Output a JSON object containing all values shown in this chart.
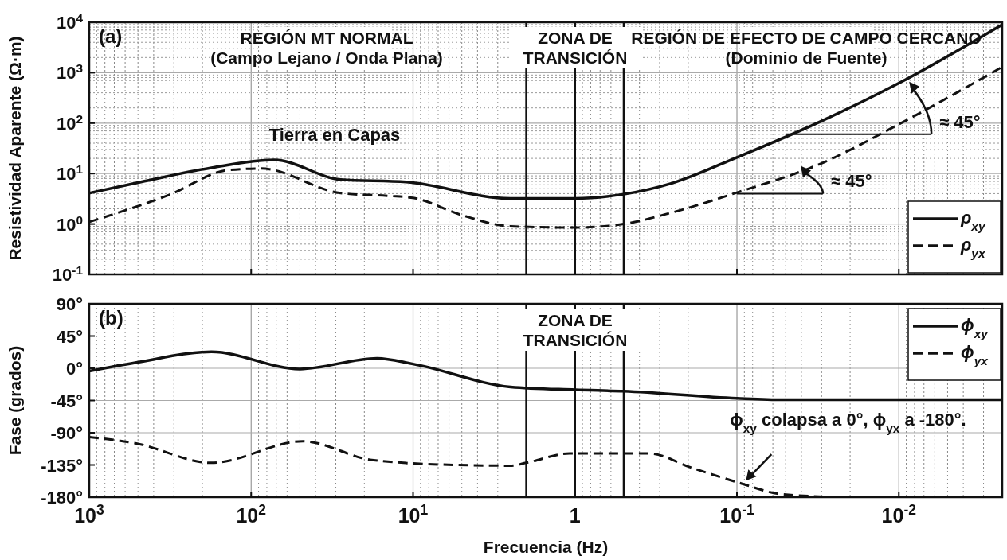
{
  "chart_data": [
    {
      "type": "line",
      "title": "(a)",
      "ylabel": "Resistividad Aparente (Ω·m)",
      "log": "xy",
      "xlim": [
        1000,
        0.0023
      ],
      "ylim": [
        0.1,
        10000
      ],
      "xticks": [
        1000,
        100,
        10,
        1,
        0.1,
        0.01
      ],
      "yticks": [
        {
          "value": 0.1,
          "label": "10$^{-1}$"
        },
        {
          "value": 1,
          "label": "10$^{0}$"
        },
        {
          "value": 10,
          "label": "10$^{1}$"
        },
        {
          "value": 100,
          "label": "10$^{2}$"
        },
        {
          "value": 1000,
          "label": "10$^{3}$"
        },
        {
          "value": 10000,
          "label": "10$^{4}$"
        }
      ],
      "tick_labels": "y",
      "grid": true,
      "legend": "bottom right",
      "series": [
        {
          "name": "ρ$_{xy}$",
          "color": "#111111",
          "line_style": "solid",
          "x": [
            1000,
            512,
            176,
            72,
            28,
            11,
            2.5,
            1,
            0.5,
            0.25,
            0.1,
            0.03,
            0.01,
            0.0023
          ],
          "values": [
            4.1,
            6.5,
            13,
            18.6,
            7.6,
            6.8,
            3.2,
            3.2,
            3.9,
            6.5,
            21,
            110,
            620,
            9000
          ]
        },
        {
          "name": "ρ$_{yx}$",
          "color": "#111111",
          "line_style": "dashed",
          "x": [
            1000,
            320,
            139,
            87,
            28,
            14,
            10,
            5,
            2.5,
            1,
            0.5,
            0.25,
            0.1,
            0.03,
            0.01,
            0.0023
          ],
          "values": [
            1.1,
            3.8,
            11.7,
            12.6,
            4.1,
            3.6,
            3.3,
            1.5,
            0.9,
            0.85,
            1,
            1.7,
            4.2,
            16,
            95,
            1300
          ]
        }
      ],
      "ref_lines": [
        {
          "axis": "x",
          "value": 2,
          "color": "#111111"
        },
        {
          "axis": "x",
          "value": 1,
          "color": "#111111"
        },
        {
          "axis": "x",
          "value": 0.5,
          "color": "#111111"
        }
      ],
      "annotations": [
        "REGIÓN MT NORMAL\n(Campo Lejano / Onda Plana)",
        "ZONA DE\nTRANSICIÓN",
        "REGIÓN DE EFECTO DE CAMPO CERCANO\n(Dominio de Fuente)",
        "Tierra en Capas",
        {
          "text": "≈ 45°",
          "x": 0.05,
          "y": 60
        },
        {
          "text": "≈ 45°",
          "x": 0.1,
          "y": 4
        }
      ]
    },
    {
      "type": "line",
      "title": "(b)",
      "xlabel": "Frecuencia (Hz)",
      "ylabel": "Fase (grados)",
      "log": "x",
      "xlim": [
        1000,
        0.0023
      ],
      "ylim": [
        -180,
        90
      ],
      "xticks": [
        {
          "value": 1000,
          "label": "10$^{3}$"
        },
        {
          "value": 100,
          "label": "10$^{2}$"
        },
        {
          "value": 10,
          "label": "10$^{1}$"
        },
        {
          "value": 1,
          "label": "1"
        },
        {
          "value": 0.1,
          "label": "10$^{-1}$"
        },
        {
          "value": 0.01,
          "label": "10$^{-2}$"
        }
      ],
      "yticks": [
        {
          "value": -180,
          "label": "-180°"
        },
        {
          "value": -135,
          "label": "-135°"
        },
        {
          "value": -90,
          "label": "-90°"
        },
        {
          "value": -45,
          "label": "-45°"
        },
        {
          "value": 0,
          "label": "0°"
        },
        {
          "value": 45,
          "label": "45°"
        },
        {
          "value": 90,
          "label": "90°"
        }
      ],
      "grid": true,
      "legend": "top right",
      "series": [
        {
          "name": "ϕ$_{xy}$",
          "color": "#111111",
          "line_style": "solid",
          "x": [
            1000,
            512,
            176,
            50,
            16.7,
            10,
            2.5,
            1,
            0.5,
            0.1,
            0.052,
            0.0023
          ],
          "values": [
            -4,
            8,
            23,
            -1,
            14,
            6,
            -26,
            -30,
            -32,
            -42,
            -44,
            -44
          ]
        },
        {
          "name": "ϕ$_{yx}$",
          "color": "#111111",
          "line_style": "dashed",
          "x": [
            1000,
            512,
            176,
            48,
            18,
            5.5,
            2.5,
            2,
            1.08,
            0.35,
            0.19,
            0.1,
            0.052,
            0.02,
            0.0023
          ],
          "values": [
            -96,
            -105,
            -132,
            -102,
            -128,
            -135,
            -136,
            -132,
            -119,
            -119,
            -139,
            -159,
            -176,
            -180,
            -180
          ]
        }
      ],
      "ref_lines": [
        {
          "axis": "x",
          "value": 2,
          "color": "#111111"
        },
        {
          "axis": "x",
          "value": 1,
          "color": "#111111"
        },
        {
          "axis": "x",
          "value": 0.5,
          "color": "#111111"
        }
      ],
      "annotations": [
        "ZONA DE\nTRANSICIÓN",
        {
          "text": "ϕ$_{xy}$ colapsa a 0°, ϕ$_{yx}$ a -180°.",
          "x": 0.09,
          "y": -158
        }
      ]
    }
  ]
}
